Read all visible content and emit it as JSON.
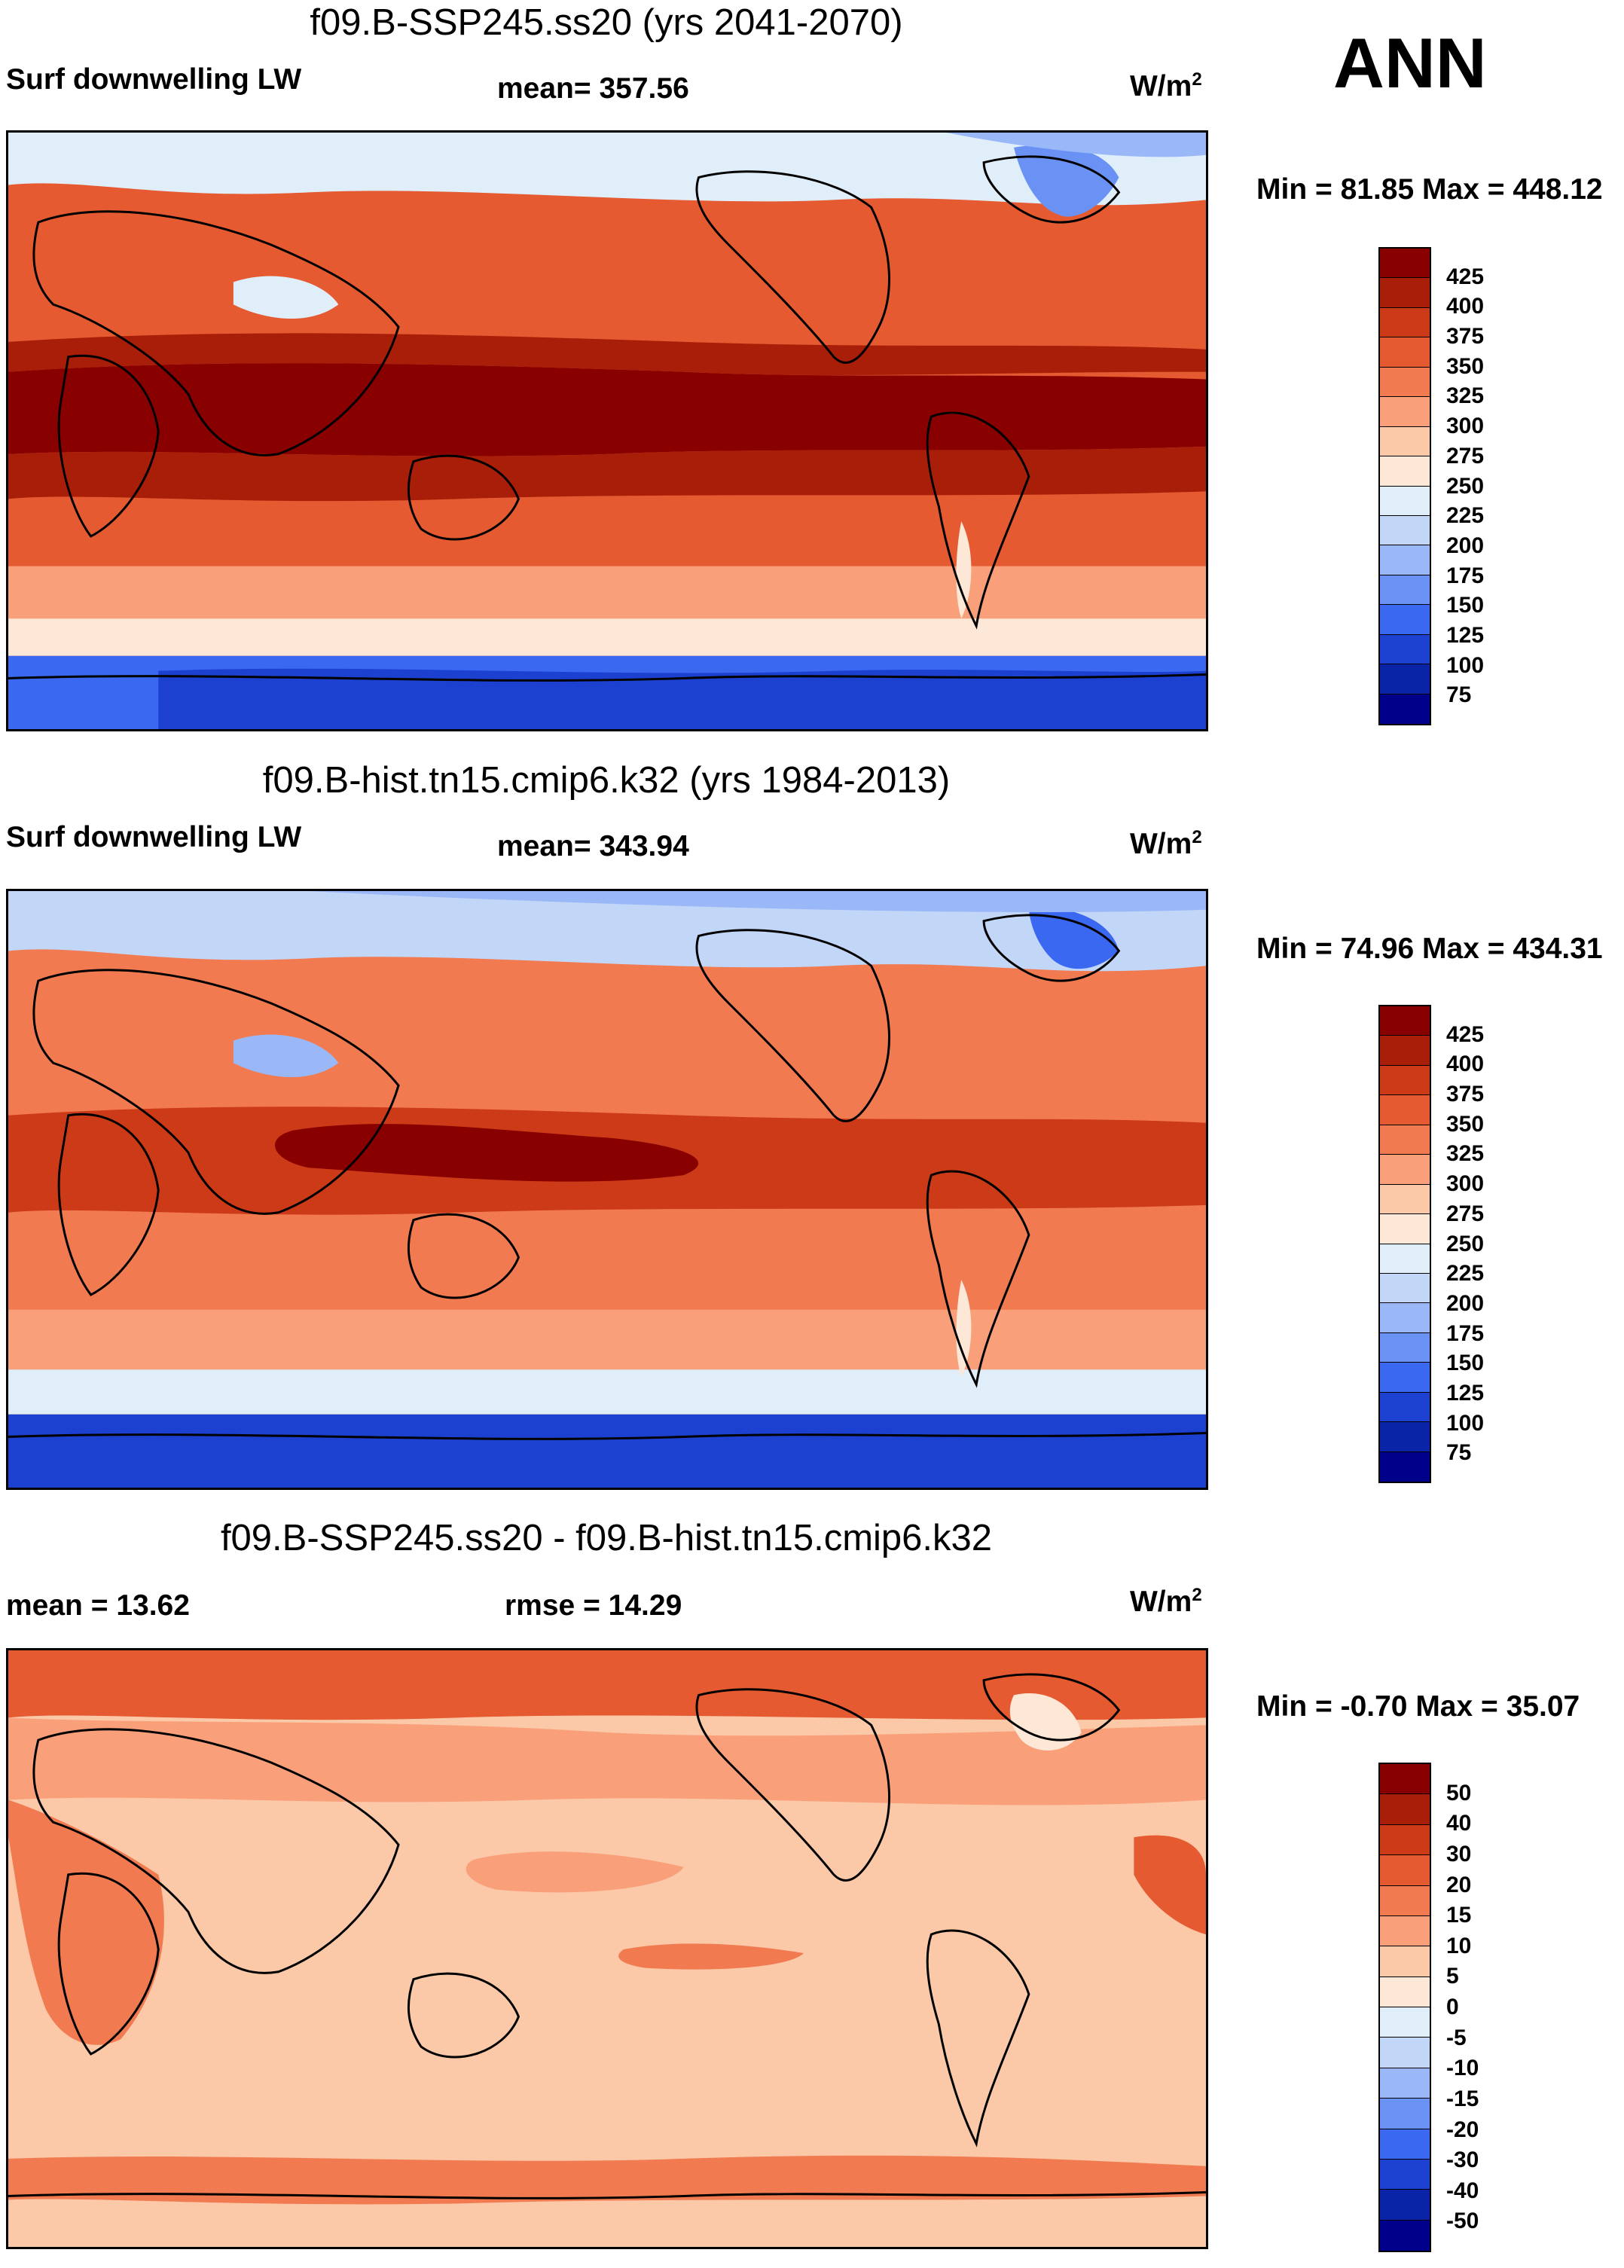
{
  "season": "ANN",
  "units": "W/m",
  "units_sup": "2",
  "colors": {
    "abs": [
      "#00008b",
      "#0a24a8",
      "#1c40d0",
      "#3a68f0",
      "#6a92f5",
      "#9ab8f8",
      "#c2d6f8",
      "#e0eefa",
      "#fde8d8",
      "#fbc8a8",
      "#f9a07a",
      "#f27a50",
      "#e55a30",
      "#cc3a18",
      "#a81e08",
      "#880000"
    ],
    "diff": [
      "#00008b",
      "#0a24a8",
      "#1c40d0",
      "#3a68f0",
      "#6a92f5",
      "#9ab8f8",
      "#c2d6f8",
      "#e0eefa",
      "#fde8d8",
      "#fbc8a8",
      "#f9a07a",
      "#f27a50",
      "#e55a30",
      "#cc3a18",
      "#a81e08",
      "#880000"
    ]
  },
  "panels": [
    {
      "title": "f09.B-SSP245.ss20 (yrs 2041-2070)",
      "left_label": "Surf downwelling LW",
      "center_label": "mean= 357.56",
      "minmax": "Min =  81.85 Max = 448.12",
      "ticks": [
        "425",
        "400",
        "375",
        "350",
        "325",
        "300",
        "275",
        "250",
        "225",
        "200",
        "175",
        "150",
        "125",
        "100",
        "75"
      ],
      "palette": "abs"
    },
    {
      "title": "f09.B-hist.tn15.cmip6.k32 (yrs 1984-2013)",
      "left_label": "Surf downwelling LW",
      "center_label": "mean= 343.94",
      "minmax": "Min =  74.96 Max = 434.31",
      "ticks": [
        "425",
        "400",
        "375",
        "350",
        "325",
        "300",
        "275",
        "250",
        "225",
        "200",
        "175",
        "150",
        "125",
        "100",
        "75"
      ],
      "palette": "abs"
    },
    {
      "title": "f09.B-SSP245.ss20 - f09.B-hist.tn15.cmip6.k32",
      "left_label": "mean =  13.62",
      "center_label": "rmse =  14.29",
      "minmax": "Min =  -0.70 Max =  35.07",
      "ticks": [
        "50",
        "40",
        "30",
        "20",
        "15",
        "10",
        "5",
        "0",
        "-5",
        "-10",
        "-15",
        "-20",
        "-30",
        "-40",
        "-50"
      ],
      "palette": "diff"
    }
  ]
}
